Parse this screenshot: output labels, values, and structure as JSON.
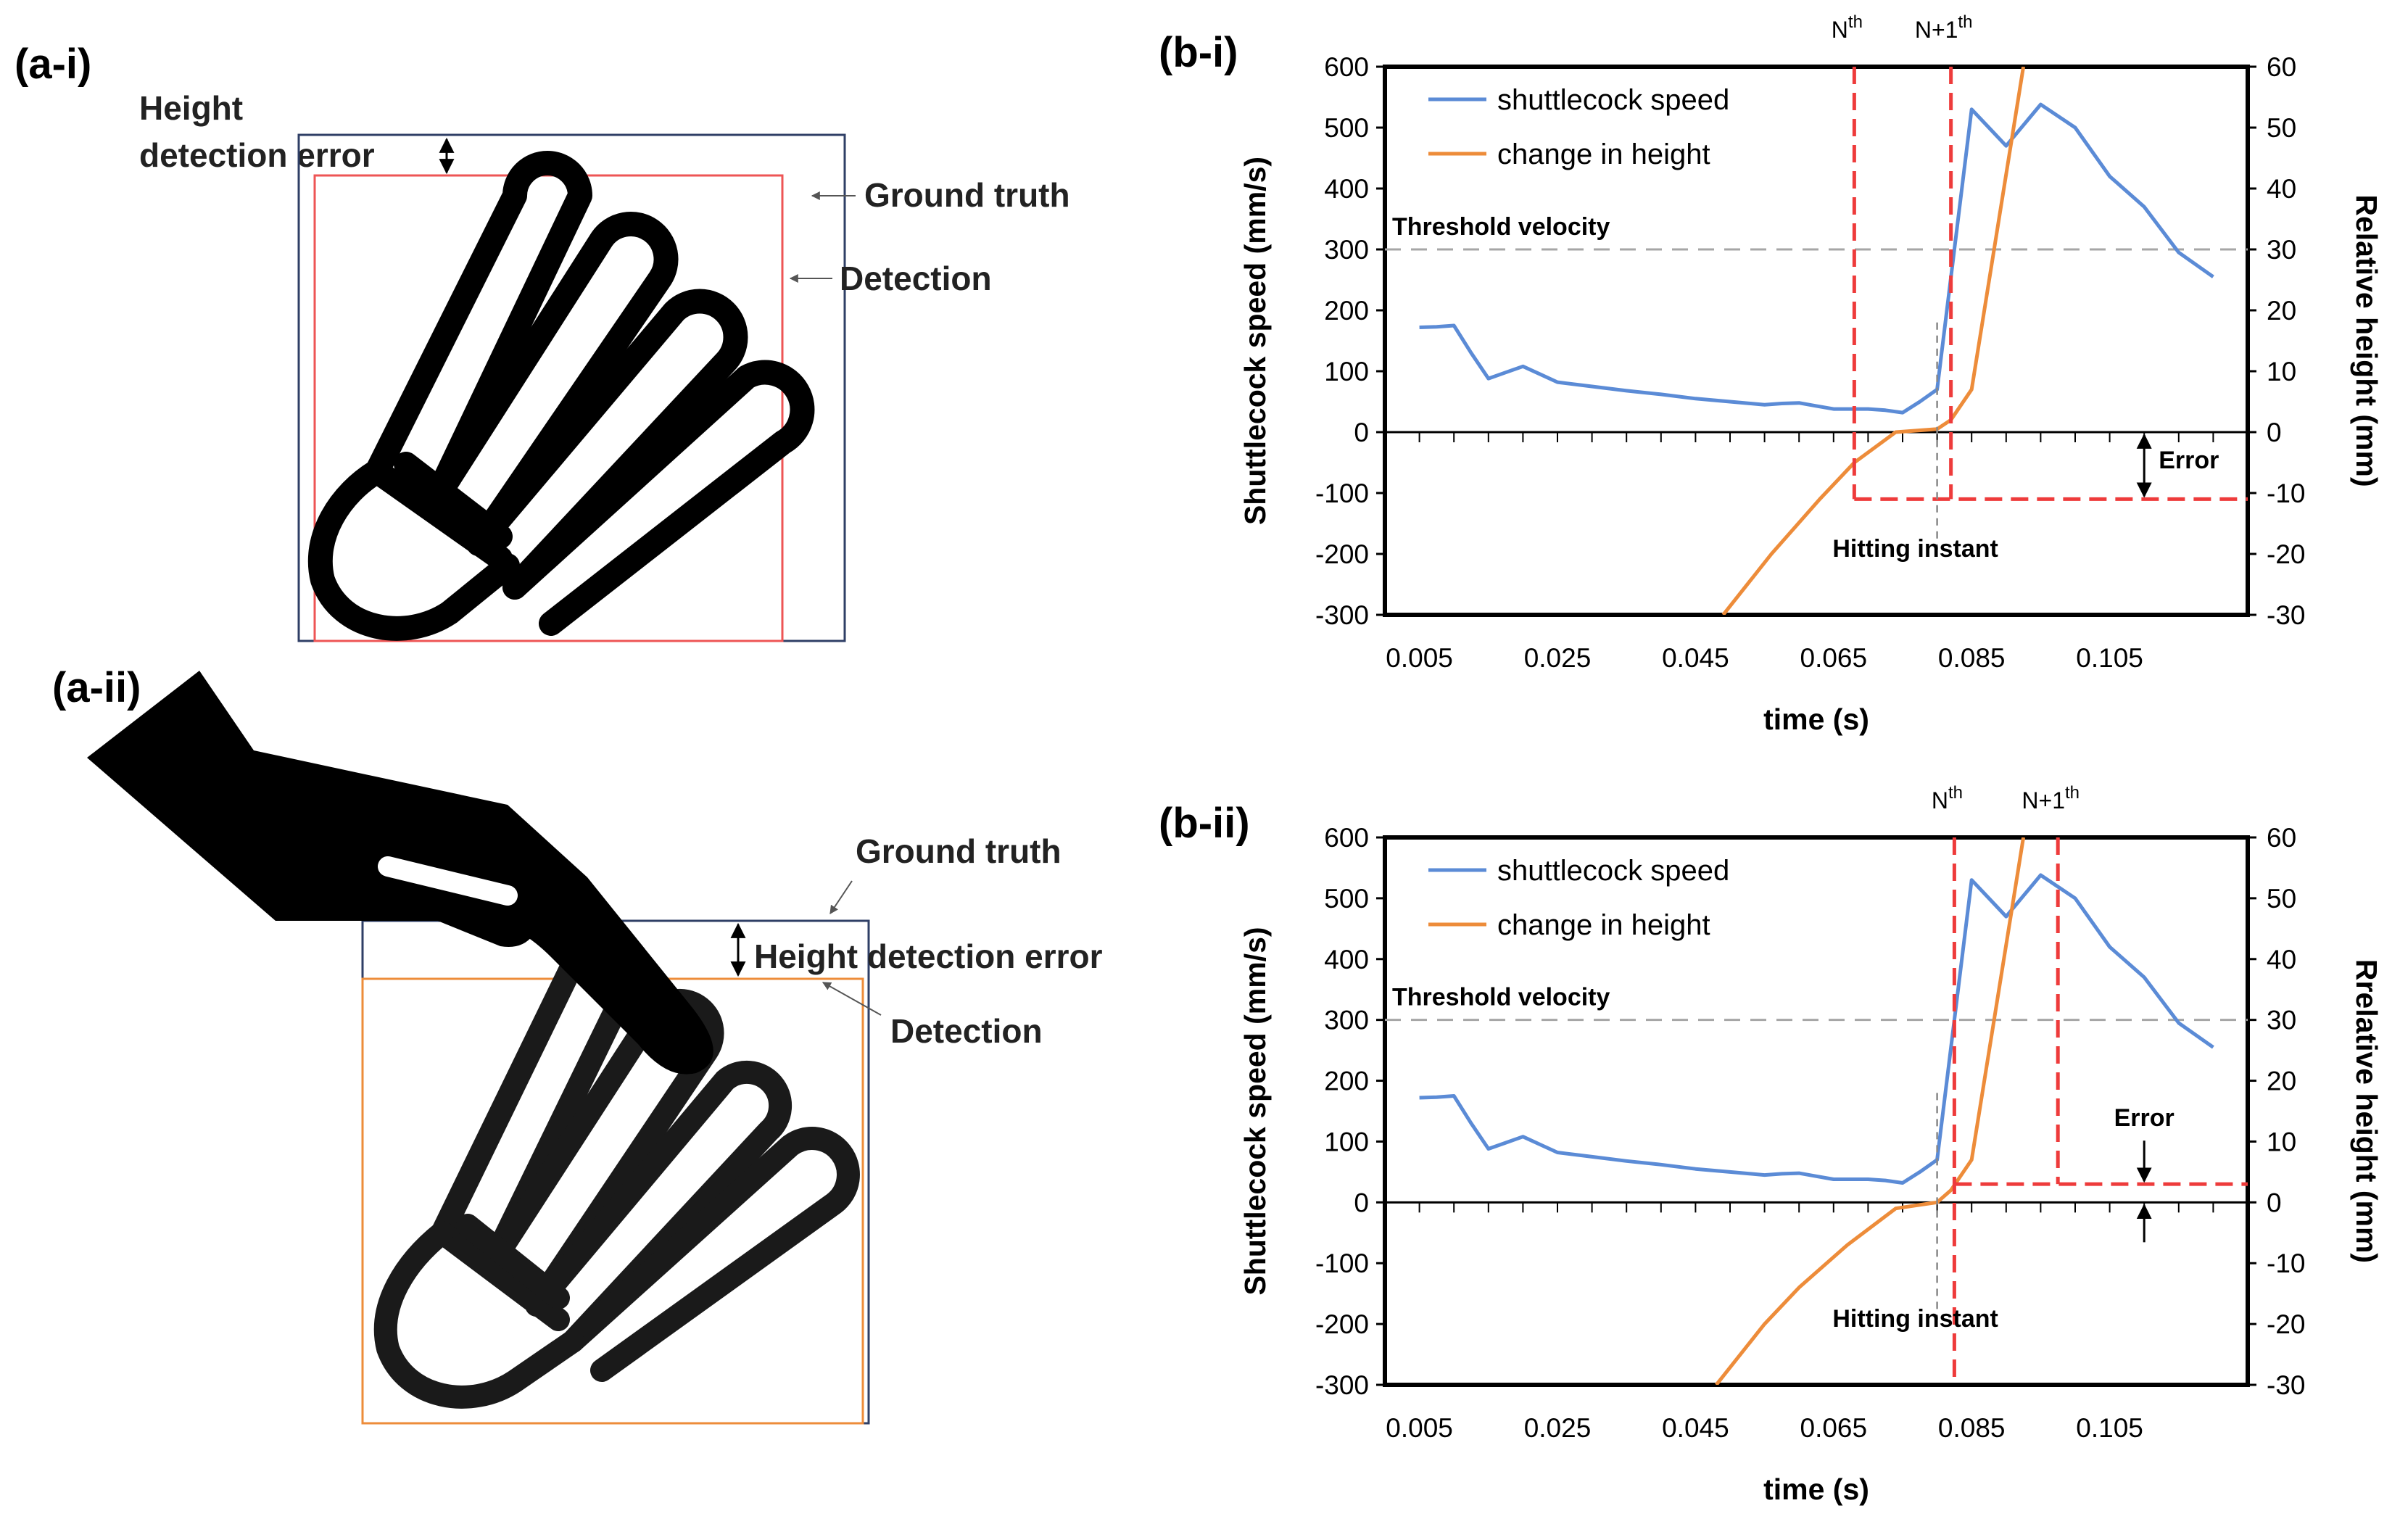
{
  "panels": {
    "a_i": {
      "label": "(a-i)",
      "height_error_line1": "Height",
      "height_error_line2": "detection error",
      "ground_truth": "Ground truth",
      "detection": "Detection"
    },
    "a_ii": {
      "label": "(a-ii)",
      "ground_truth": "Ground truth",
      "height_error": "Height detection error",
      "detection": "Detection"
    }
  },
  "colors": {
    "speed": "#5b8bd6",
    "height": "#ed8c3a",
    "marker": "#ee3b3b",
    "threshold": "#a6a6a6",
    "gt_box": "#2f3f66",
    "det_box_ai": "#ee5555",
    "det_box_aii": "#ed8c3a"
  },
  "chart_data": [
    {
      "id": "b-i",
      "panel_label": "(b-i)",
      "type": "line",
      "xlabel": "time (s)",
      "ylabel": "Shuttlecock speed (mm/s)",
      "y2label": "Relative height (mm)",
      "xlim": [
        0.0,
        0.125
      ],
      "ylim": [
        -300,
        600
      ],
      "y2lim": [
        -30,
        60
      ],
      "xticks": [
        0.005,
        0.025,
        0.045,
        0.065,
        0.085,
        0.105
      ],
      "xtick_labels": [
        "0.005",
        "0.025",
        "0.045",
        "0.065",
        "0.085",
        "0.105"
      ],
      "yticks": [
        -300,
        -200,
        -100,
        0,
        100,
        200,
        300,
        400,
        500,
        600
      ],
      "ytick_labels": [
        "-300",
        "-200",
        "-100",
        "0",
        "100",
        "200",
        "300",
        "400",
        "500",
        "600"
      ],
      "y2ticks": [
        -30,
        -20,
        -10,
        0,
        10,
        20,
        30,
        40,
        50,
        60
      ],
      "y2tick_labels": [
        "-30",
        "-20",
        "-10",
        "0",
        "10",
        "20",
        "30",
        "40",
        "50",
        "60"
      ],
      "threshold": {
        "value": 300,
        "label": "Threshold velocity"
      },
      "series": [
        {
          "name": "shuttlecock speed",
          "axis": "left",
          "x": [
            0.005,
            0.0075,
            0.01,
            0.0125,
            0.015,
            0.0175,
            0.02,
            0.0225,
            0.025,
            0.03,
            0.035,
            0.04,
            0.045,
            0.05,
            0.055,
            0.0575,
            0.06,
            0.0625,
            0.065,
            0.0675,
            0.07,
            0.0725,
            0.075,
            0.0775,
            0.08,
            0.0825,
            0.085,
            0.0875,
            0.09,
            0.095,
            0.1,
            0.105,
            0.11,
            0.115,
            0.12
          ],
          "values": [
            172,
            173,
            175,
            130,
            88,
            98,
            108,
            95,
            82,
            75,
            68,
            62,
            55,
            50,
            45,
            47,
            48,
            43,
            38,
            38,
            38,
            36,
            32,
            50,
            70,
            300,
            530,
            500,
            470,
            538,
            500,
            420,
            370,
            295,
            255
          ]
        },
        {
          "name": "change in height",
          "axis": "right",
          "x": [
            0.049,
            0.056,
            0.063,
            0.068,
            0.074,
            0.08,
            0.082,
            0.085,
            0.0925
          ],
          "values": [
            -30,
            -20,
            -11,
            -5,
            0,
            0.5,
            2,
            7,
            60
          ]
        }
      ],
      "annotations": {
        "nth_x": 0.068,
        "nth_label_main": "N",
        "nth_label_sup": "th",
        "n1_x": 0.082,
        "n1_label_main": "N+1",
        "n1_label_sup": "th",
        "hitting_x": 0.08,
        "hitting_label": "Hitting instant",
        "error_level": -11,
        "error_label": "Error",
        "error_arrow_x": 0.11
      },
      "legend_position": "top-left"
    },
    {
      "id": "b-ii",
      "panel_label": "(b-ii)",
      "type": "line",
      "xlabel": "time (s)",
      "ylabel": "Shuttlecock speed (mm/s)",
      "y2label": "Rrelative height (mm)",
      "xlim": [
        0.0,
        0.125
      ],
      "ylim": [
        -300,
        600
      ],
      "y2lim": [
        -30,
        60
      ],
      "xticks": [
        0.005,
        0.025,
        0.045,
        0.065,
        0.085,
        0.105
      ],
      "xtick_labels": [
        "0.005",
        "0.025",
        "0.045",
        "0.065",
        "0.085",
        "0.105"
      ],
      "yticks": [
        -300,
        -200,
        -100,
        0,
        100,
        200,
        300,
        400,
        500,
        600
      ],
      "ytick_labels": [
        "-300",
        "-200",
        "-100",
        "0",
        "100",
        "200",
        "300",
        "400",
        "500",
        "600"
      ],
      "y2ticks": [
        -30,
        -20,
        -10,
        0,
        10,
        20,
        30,
        40,
        50,
        60
      ],
      "y2tick_labels": [
        "-30",
        "-20",
        "-10",
        "0",
        "10",
        "20",
        "30",
        "40",
        "50",
        "60"
      ],
      "threshold": {
        "value": 300,
        "label": "Threshold velocity"
      },
      "series": [
        {
          "name": "shuttlecock speed",
          "axis": "left",
          "x": [
            0.005,
            0.0075,
            0.01,
            0.0125,
            0.015,
            0.0175,
            0.02,
            0.0225,
            0.025,
            0.03,
            0.035,
            0.04,
            0.045,
            0.05,
            0.055,
            0.0575,
            0.06,
            0.0625,
            0.065,
            0.0675,
            0.07,
            0.0725,
            0.075,
            0.0775,
            0.08,
            0.0825,
            0.085,
            0.0875,
            0.09,
            0.095,
            0.1,
            0.105,
            0.11,
            0.115,
            0.12
          ],
          "values": [
            172,
            173,
            175,
            130,
            88,
            98,
            108,
            95,
            82,
            75,
            68,
            62,
            55,
            50,
            45,
            47,
            48,
            43,
            38,
            38,
            38,
            36,
            32,
            50,
            70,
            300,
            530,
            500,
            470,
            538,
            500,
            420,
            370,
            295,
            255
          ]
        },
        {
          "name": "change in height",
          "axis": "right",
          "x": [
            0.048,
            0.055,
            0.06,
            0.067,
            0.074,
            0.08,
            0.082,
            0.085,
            0.0925
          ],
          "values": [
            -30,
            -20,
            -14,
            -7,
            -1,
            0,
            2,
            7,
            60
          ]
        }
      ],
      "annotations": {
        "nth_x": 0.0825,
        "nth_label_main": "N",
        "nth_label_sup": "th",
        "n1_x": 0.0975,
        "n1_label_main": "N+1",
        "n1_label_sup": "th",
        "hitting_x": 0.08,
        "hitting_label": "Hitting instant",
        "error_level": 3,
        "error_label": "Error",
        "error_arrow_x": 0.11
      },
      "legend_position": "top-left"
    }
  ]
}
